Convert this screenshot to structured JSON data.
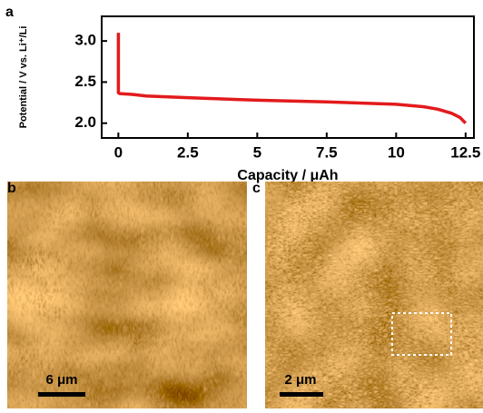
{
  "chart_data": {
    "type": "line",
    "x_label": "Capacity / μAh",
    "y_label": "Potential / V vs. Li⁺/Li",
    "x": [
      0,
      0,
      0.05,
      0.5,
      1,
      2.5,
      5,
      7.5,
      10,
      11,
      11.5,
      12,
      12.3,
      12.5
    ],
    "values": [
      3.1,
      2.37,
      2.36,
      2.35,
      2.33,
      2.31,
      2.28,
      2.26,
      2.23,
      2.2,
      2.17,
      2.12,
      2.07,
      2.0
    ],
    "color": "#e31a1c",
    "xlim": [
      -0.6,
      12.8
    ],
    "ylim": [
      1.82,
      3.3
    ],
    "xticks": [
      0,
      2.5,
      5,
      7.5,
      10,
      12.5
    ],
    "yticks": [
      {
        "value": 2,
        "label": "2.0"
      },
      2.5,
      {
        "value": 3,
        "label": "3.0"
      }
    ]
  },
  "panels": {
    "a": {
      "label": "a"
    },
    "b": {
      "label": "b",
      "scale_bar": "6 μm"
    },
    "c": {
      "label": "c",
      "scale_bar": "2 μm"
    }
  }
}
